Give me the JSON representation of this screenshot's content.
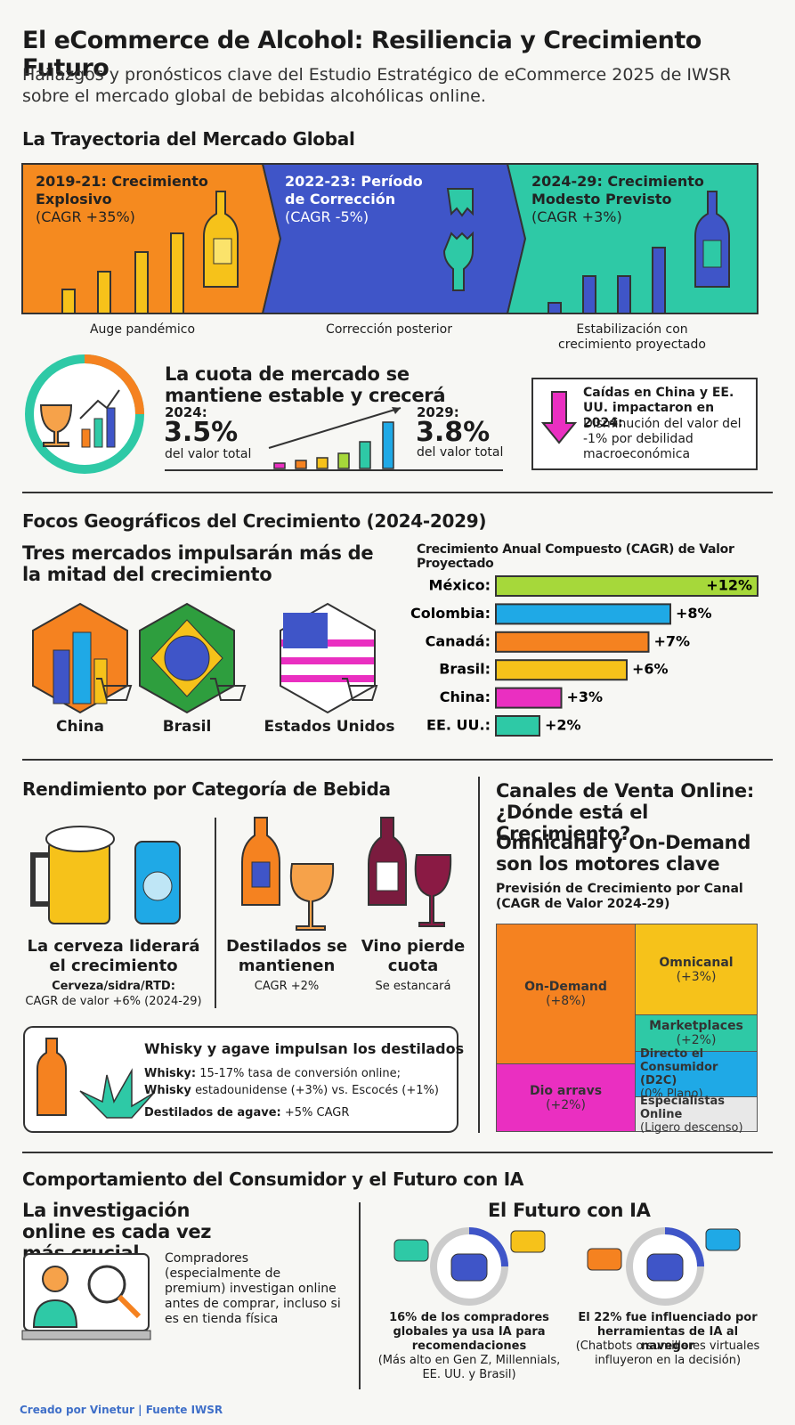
{
  "header": {
    "title": "El eCommerce de Alcohol: Resiliencia y Crecimiento Futuro",
    "subtitle": "Hailazgos y pronósticos clave del Estudio Estratégico de eCommerce 2025 de IWSR sobre el mercado global de bebidas alcohólicas online."
  },
  "trajectory": {
    "heading": "La Trayectoria del Mercado Global",
    "phases": [
      {
        "title": "2019-21: Crecimiento Explosivo",
        "cagr": "(CAGR +35%)",
        "caption": "Auge pandémico"
      },
      {
        "title": "2022-23: Período de Corrección",
        "cagr": "(CAGR -5%)",
        "caption": "Corrección posterior"
      },
      {
        "title": "2024-29: Crecimiento Modesto Previsto",
        "cagr": "(CAGR +3%)",
        "caption": "Estabilización con crecimiento proyectado"
      }
    ]
  },
  "share": {
    "heading": "La cuota de mercado se mantiene estable y crecerá",
    "from": {
      "year": "2024:",
      "value": "3.5%",
      "note": "del valor total"
    },
    "to": {
      "year": "2029:",
      "value": "3.8%",
      "note": "del valor total"
    }
  },
  "callout": {
    "title": "Caídas en China y EE. UU. impactaron en 2024:",
    "text": "Disminución del valor del -1% por debilidad macroeconómica"
  },
  "geo": {
    "heading": "Focos Geográficos del Crecimiento (2024-2029)",
    "subheading": "Tres mercados impulsarán más de la mitad del crecimiento",
    "markets": [
      "China",
      "Brasil",
      "Estados Unidos"
    ],
    "chart": {
      "title": "Crecimiento Anual Compuesto (CAGR) de Valor Proyectado",
      "categories": [
        "México:",
        "Colombia:",
        "Canadá:",
        "Brasil:",
        "China:",
        "EE. UU.:"
      ],
      "values": [
        12,
        8,
        7,
        6,
        3,
        2
      ],
      "value_labels": [
        "+12%",
        "+8%",
        "+7%",
        "+6%",
        "+3%",
        "+2%"
      ],
      "colors": [
        "#a6d83a",
        "#1fa9e6",
        "#f58220",
        "#f6c21a",
        "#ea2fc1",
        "#2ec9a6"
      ]
    }
  },
  "category": {
    "heading": "Rendimiento por Categoría de Bebida",
    "items": [
      {
        "title": "La cerveza liderará el crecimiento",
        "detail": "Cerveza/sidra/RTD:",
        "detail2": "CAGR de valor +6% (2024-29)"
      },
      {
        "title": "Destilados se mantienen",
        "detail": "CAGR +2%"
      },
      {
        "title": "Vino pierde cuota",
        "detail": "Se estancará"
      }
    ],
    "whisky": {
      "title": "Whisky y agave impulsan los destilados",
      "lines": [
        {
          "label": "Whisky:",
          "text": "15-17% tasa de conversión online;"
        },
        {
          "label": "Whisky",
          "text": "estadounidense (+3%) vs. Escocés (+1%)"
        },
        {
          "label": "Destilados de agave:",
          "text": "+5% CAGR"
        }
      ]
    }
  },
  "channels": {
    "heading": "Canales de Venta Online: ¿Dónde está el Crecimiento?",
    "subheading": "Omnicanal y On-Demand son los motores clave",
    "chart_title": "Previsión de Crecimiento por Canal (CAGR de Valor 2024-29)",
    "tiles": [
      {
        "name": "On-Demand",
        "value": "(+8%)"
      },
      {
        "name": "Omnicanal",
        "value": "(+3%)"
      },
      {
        "name": "Marketplaces",
        "value": "(+2%)"
      },
      {
        "name": "Directo el Consumidor (D2C)",
        "value": "(0% Plano)"
      },
      {
        "name": "Dio arravs",
        "value": "(+2%)"
      },
      {
        "name": "Especialistas Online",
        "value": "(Ligero descenso)"
      }
    ]
  },
  "consumer": {
    "heading": "Comportamiento del Consumidor y el Futuro con IA",
    "research": {
      "title": "La investigación online es cada vez más crucial",
      "text": "Compradores (especialmente de premium) investigan online antes de comprar, incluso si es en tienda física"
    },
    "ai": {
      "title": "El Futuro con IA",
      "items": [
        {
          "bold": "16% de los compradores globales ya usa IA para recomendaciones",
          "note": "(Más alto en Gen Z, Millennials, EE. UU. y Brasil)"
        },
        {
          "bold": "El 22% fue influenciado por herramientas de IA al navegor",
          "note": "(Chatbots o sumilleres virtuales influyeron en la decisión)"
        }
      ]
    }
  },
  "footer": "Creado por Vinetur | Fuente IWSR"
}
